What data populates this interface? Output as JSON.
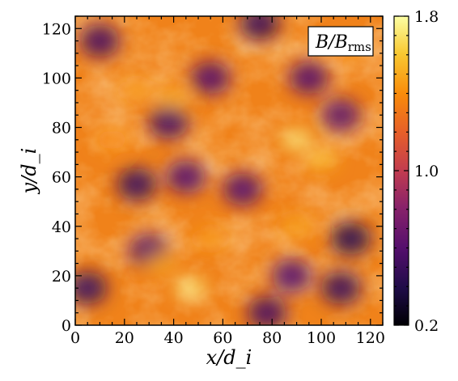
{
  "chart_data": {
    "type": "heatmap",
    "title": "",
    "xlabel": "x/d_i",
    "ylabel": "y/d_i",
    "xlim": [
      0,
      125
    ],
    "ylim": [
      0,
      125
    ],
    "xticks": [
      0,
      20,
      40,
      60,
      80,
      100,
      120
    ],
    "yticks": [
      0,
      20,
      40,
      60,
      80,
      100,
      120
    ],
    "xtick_labels": [
      "0",
      "20",
      "40",
      "60",
      "80",
      "100",
      "120"
    ],
    "ytick_labels": [
      "0",
      "20",
      "40",
      "60",
      "80",
      "100",
      "120"
    ],
    "annotation": {
      "text_main": "B/B",
      "text_sub": "rms",
      "placement": "top-right"
    },
    "colorbar": {
      "label": "",
      "min": 0.2,
      "max": 1.8,
      "ticks": [
        0.2,
        1.0,
        1.8
      ],
      "tick_labels": [
        "0.2",
        "1.0",
        "1.8"
      ],
      "colormap": "inferno",
      "placement": "right"
    },
    "field_description_points": [
      {
        "x": 10,
        "y": 115,
        "value": 0.55
      },
      {
        "x": 5,
        "y": 15,
        "value": 0.5
      },
      {
        "x": 25,
        "y": 57,
        "value": 0.5
      },
      {
        "x": 38,
        "y": 82,
        "value": 0.55
      },
      {
        "x": 45,
        "y": 60,
        "value": 0.6
      },
      {
        "x": 55,
        "y": 100,
        "value": 0.6
      },
      {
        "x": 68,
        "y": 55,
        "value": 0.6
      },
      {
        "x": 75,
        "y": 122,
        "value": 0.5
      },
      {
        "x": 95,
        "y": 100,
        "value": 0.6
      },
      {
        "x": 108,
        "y": 85,
        "value": 0.65
      },
      {
        "x": 112,
        "y": 35,
        "value": 0.45
      },
      {
        "x": 108,
        "y": 15,
        "value": 0.5
      },
      {
        "x": 88,
        "y": 20,
        "value": 0.6
      },
      {
        "x": 78,
        "y": 5,
        "value": 0.55
      },
      {
        "x": 30,
        "y": 30,
        "value": 0.6
      },
      {
        "x": 47,
        "y": 15,
        "value": 1.75
      },
      {
        "x": 90,
        "y": 75,
        "value": 1.75
      },
      {
        "x": 100,
        "y": 67,
        "value": 1.55
      },
      {
        "x": 40,
        "y": 92,
        "value": 1.5
      },
      {
        "x": 25,
        "y": 95,
        "value": 1.45
      },
      {
        "x": 35,
        "y": 25,
        "value": 1.5
      },
      {
        "x": 55,
        "y": 35,
        "value": 1.45
      },
      {
        "x": 110,
        "y": 112,
        "value": 1.4
      },
      {
        "x": 15,
        "y": 75,
        "value": 1.4
      },
      {
        "x": 90,
        "y": 40,
        "value": 1.5
      }
    ]
  }
}
